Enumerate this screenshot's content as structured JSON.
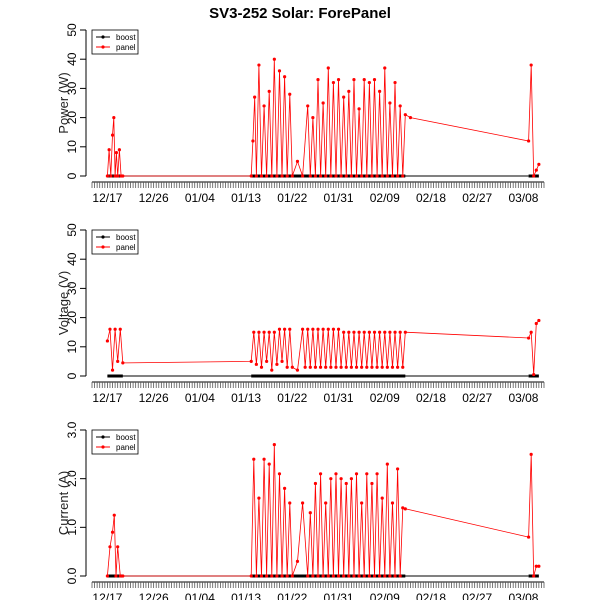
{
  "title": "SV3-252 Solar: ForePanel",
  "colors": {
    "boost": "#000000",
    "panel": "#ff0000"
  },
  "chart_data": [
    {
      "type": "line",
      "ylabel": "Power (W)",
      "ylim": [
        0,
        50
      ],
      "yticks": [
        "0",
        "10",
        "20",
        "30",
        "40",
        "50"
      ],
      "xlim": [
        "12/14",
        "03/12"
      ],
      "xticks": [
        "12/17",
        "12/26",
        "01/04",
        "01/13",
        "01/22",
        "01/31",
        "02/09",
        "02/18",
        "02/27",
        "03/08"
      ],
      "legend": {
        "position": "top-left",
        "entries": [
          "boost",
          "panel"
        ]
      },
      "series": [
        {
          "name": "boost",
          "values_note": "flat at 0",
          "x": [],
          "y": []
        },
        {
          "name": "panel",
          "x": [
            "12/17",
            "12/17",
            "12/17",
            "12/18",
            "12/18",
            "12/18",
            "12/18",
            "12/19",
            "12/19",
            "12/19",
            "12/20",
            "01/14",
            "01/14",
            "01/14",
            "01/15",
            "01/15",
            "01/16",
            "01/16",
            "01/17",
            "01/17",
            "01/18",
            "01/18",
            "01/19",
            "01/19",
            "01/20",
            "01/20",
            "01/21",
            "01/21",
            "01/22",
            "01/23",
            "01/24",
            "01/25",
            "01/25",
            "01/26",
            "01/26",
            "01/27",
            "01/27",
            "01/28",
            "01/28",
            "01/29",
            "01/29",
            "01/30",
            "01/30",
            "01/31",
            "01/31",
            "02/01",
            "02/01",
            "02/02",
            "02/02",
            "02/03",
            "02/03",
            "02/04",
            "02/04",
            "02/05",
            "02/05",
            "02/06",
            "02/06",
            "02/07",
            "02/07",
            "02/08",
            "02/08",
            "02/09",
            "02/09",
            "02/10",
            "02/10",
            "02/11",
            "02/11",
            "02/12",
            "02/12",
            "02/13",
            "02/14",
            "03/09",
            "03/09",
            "03/10",
            "03/10",
            "03/11"
          ],
          "y": [
            0,
            9,
            0,
            14,
            20,
            0,
            8,
            0,
            9,
            0,
            0,
            0,
            12,
            27,
            0,
            38,
            0,
            24,
            0,
            29,
            0,
            40,
            0,
            36,
            0,
            34,
            0,
            28,
            0,
            5,
            0,
            24,
            0,
            20,
            0,
            33,
            0,
            25,
            0,
            37,
            0,
            32,
            0,
            33,
            0,
            27,
            0,
            29,
            0,
            33,
            0,
            23,
            0,
            33,
            0,
            32,
            0,
            33,
            0,
            29,
            0,
            37,
            0,
            25,
            0,
            32,
            0,
            24,
            0,
            21,
            20,
            12,
            38,
            0,
            2,
            4
          ]
        }
      ]
    },
    {
      "type": "line",
      "ylabel": "Voltage (V)",
      "ylim": [
        0,
        50
      ],
      "yticks": [
        "0",
        "10",
        "20",
        "30",
        "40",
        "50"
      ],
      "xlim": [
        "12/14",
        "03/12"
      ],
      "xticks": [
        "12/17",
        "12/26",
        "01/04",
        "01/13",
        "01/22",
        "01/31",
        "02/09",
        "02/18",
        "02/27",
        "03/08"
      ],
      "legend": {
        "position": "top-left",
        "entries": [
          "boost",
          "panel"
        ]
      },
      "series": [
        {
          "name": "boost",
          "x": [],
          "y": []
        },
        {
          "name": "panel",
          "x": [
            "12/17",
            "12/17",
            "12/18",
            "12/18",
            "12/19",
            "12/19",
            "12/20",
            "01/14",
            "01/14",
            "01/15",
            "01/15",
            "01/16",
            "01/16",
            "01/17",
            "01/17",
            "01/18",
            "01/18",
            "01/19",
            "01/19",
            "01/20",
            "01/20",
            "01/21",
            "01/21",
            "01/22",
            "01/23",
            "01/24",
            "01/24",
            "01/25",
            "01/25",
            "01/26",
            "01/26",
            "01/27",
            "01/27",
            "01/28",
            "01/28",
            "01/29",
            "01/29",
            "01/30",
            "01/30",
            "01/31",
            "01/31",
            "02/01",
            "02/01",
            "02/02",
            "02/02",
            "02/03",
            "02/03",
            "02/04",
            "02/04",
            "02/05",
            "02/05",
            "02/06",
            "02/06",
            "02/07",
            "02/07",
            "02/08",
            "02/08",
            "02/09",
            "02/09",
            "02/10",
            "02/10",
            "02/11",
            "02/11",
            "02/12",
            "02/12",
            "02/13",
            "03/09",
            "03/09",
            "03/10",
            "03/10",
            "03/11"
          ],
          "y": [
            12,
            16,
            2,
            16,
            5,
            16,
            4.5,
            5,
            15,
            4,
            15,
            3,
            15,
            5,
            15,
            2,
            15,
            4,
            16,
            5,
            16,
            3,
            16,
            3,
            2,
            16,
            3,
            16,
            3,
            16,
            3,
            16,
            3,
            16,
            3,
            16,
            3,
            16,
            3,
            16,
            3,
            15,
            3,
            15,
            3,
            15,
            3,
            15,
            3,
            15,
            3,
            15,
            3,
            15,
            3,
            15,
            3,
            15,
            3,
            15,
            3,
            15,
            3,
            15,
            3,
            15,
            13,
            15,
            0.5,
            18,
            19
          ]
        }
      ]
    },
    {
      "type": "line",
      "ylabel": "Current (A)",
      "ylim": [
        0,
        3.0
      ],
      "yticks": [
        "0.0",
        "1.0",
        "2.0",
        "3.0"
      ],
      "xlim": [
        "12/14",
        "03/12"
      ],
      "xticks": [
        "12/17",
        "12/26",
        "01/04",
        "01/13",
        "01/22",
        "01/31",
        "02/09",
        "02/18",
        "02/27",
        "03/08"
      ],
      "legend": {
        "position": "top-left",
        "entries": [
          "boost",
          "panel"
        ]
      },
      "series": [
        {
          "name": "boost",
          "x": [],
          "y": []
        },
        {
          "name": "panel",
          "x": [
            "12/17",
            "12/17",
            "12/18",
            "12/18",
            "12/18",
            "12/19",
            "12/19",
            "12/20",
            "01/14",
            "01/14",
            "01/15",
            "01/15",
            "01/16",
            "01/16",
            "01/17",
            "01/17",
            "01/18",
            "01/18",
            "01/19",
            "01/19",
            "01/20",
            "01/20",
            "01/21",
            "01/21",
            "01/22",
            "01/23",
            "01/24",
            "01/25",
            "01/25",
            "01/26",
            "01/26",
            "01/27",
            "01/27",
            "01/28",
            "01/28",
            "01/29",
            "01/29",
            "01/30",
            "01/30",
            "01/31",
            "01/31",
            "02/01",
            "02/01",
            "02/02",
            "02/02",
            "02/03",
            "02/03",
            "02/04",
            "02/04",
            "02/05",
            "02/05",
            "02/06",
            "02/06",
            "02/07",
            "02/07",
            "02/08",
            "02/08",
            "02/09",
            "02/09",
            "02/10",
            "02/10",
            "02/11",
            "02/11",
            "02/12",
            "02/12",
            "02/13",
            "03/09",
            "03/09",
            "03/10",
            "03/10",
            "03/11"
          ],
          "y": [
            0,
            0.6,
            0.9,
            1.25,
            0,
            0.6,
            0,
            0,
            0,
            2.4,
            0,
            1.6,
            0,
            2.4,
            0,
            2.3,
            0,
            2.7,
            0,
            2.1,
            0,
            1.8,
            0,
            1.5,
            0,
            0.3,
            1.5,
            0,
            1.3,
            0,
            1.9,
            0,
            2.1,
            0,
            1.5,
            0,
            2.0,
            0,
            2.1,
            0,
            2.0,
            0,
            1.9,
            0,
            2.0,
            0,
            2.1,
            0,
            1.5,
            0,
            2.1,
            0,
            1.9,
            0,
            2.1,
            0,
            1.6,
            0,
            2.3,
            0,
            1.5,
            0,
            2.2,
            0,
            1.4,
            1.38,
            0.8,
            2.5,
            0,
            0.2,
            0.2
          ]
        }
      ]
    }
  ]
}
